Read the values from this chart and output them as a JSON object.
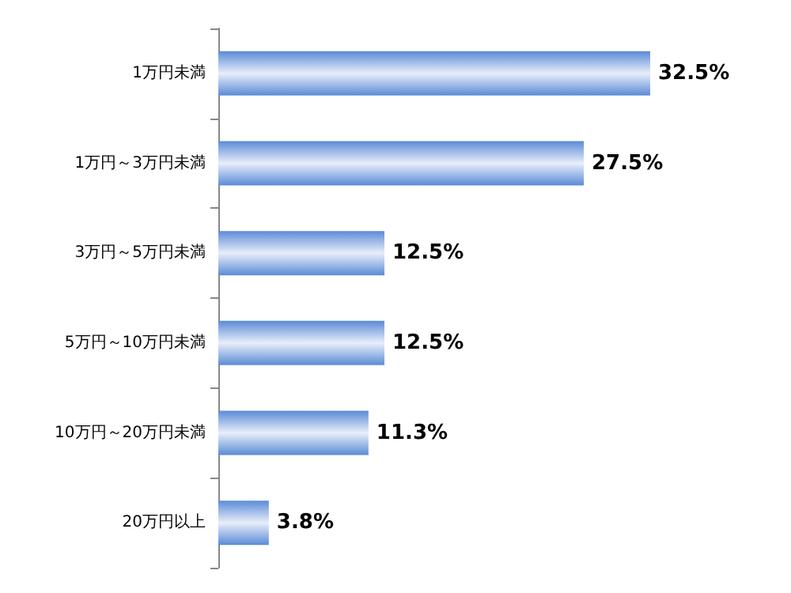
{
  "chart_data": {
    "type": "bar",
    "orientation": "horizontal",
    "categories": [
      "1万円未満",
      "1万円～3万円未満",
      "3万円～5万円未満",
      "5万円～10万円未満",
      "10万円～20万円未満",
      "20万円以上"
    ],
    "values": [
      32.5,
      27.5,
      12.5,
      12.5,
      11.3,
      3.8
    ],
    "value_labels": [
      "32.5%",
      "27.5%",
      "12.5%",
      "12.5%",
      "11.3%",
      "3.8%"
    ],
    "color": "#5b8bd6"
  }
}
